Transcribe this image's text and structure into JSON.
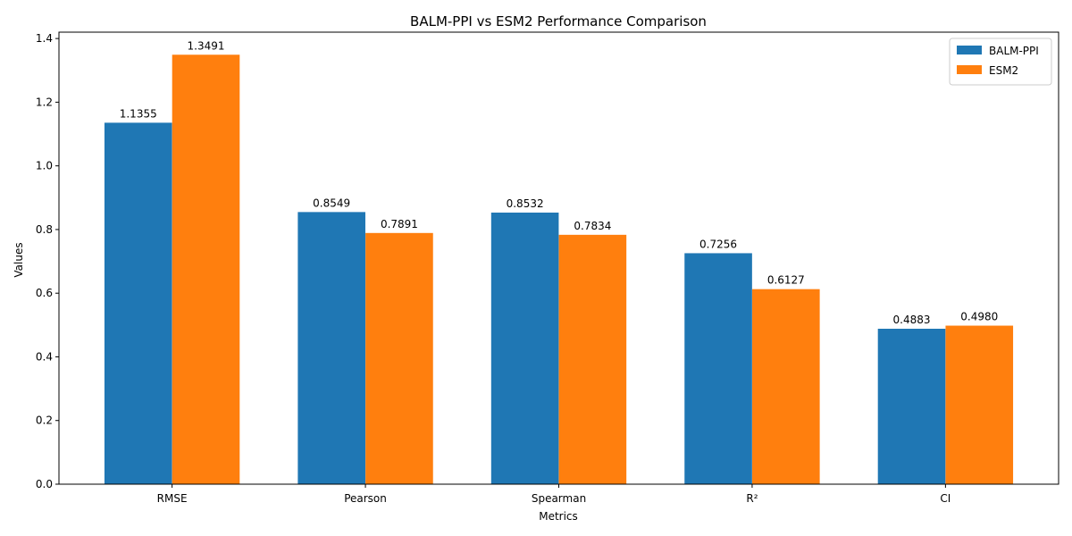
{
  "chart_data": {
    "type": "bar",
    "title": "BALM-PPI vs ESM2 Performance Comparison",
    "xlabel": "Metrics",
    "ylabel": "Values",
    "categories": [
      "RMSE",
      "Pearson",
      "Spearman",
      "R²",
      "CI"
    ],
    "series": [
      {
        "name": "BALM-PPI",
        "color": "#1f77b4",
        "values": [
          1.1355,
          0.8549,
          0.8532,
          0.7256,
          0.4883
        ],
        "labels": [
          "1.1355",
          "0.8549",
          "0.8532",
          "0.7256",
          "0.4883"
        ]
      },
      {
        "name": "ESM2",
        "color": "#ff7f0e",
        "values": [
          1.3491,
          0.7891,
          0.7834,
          0.6127,
          0.498
        ],
        "labels": [
          "1.3491",
          "0.7891",
          "0.7834",
          "0.6127",
          "0.4980"
        ]
      }
    ],
    "ylim": [
      0,
      1.42
    ],
    "yticks": [
      0.0,
      0.2,
      0.4,
      0.6,
      0.8,
      1.0,
      1.2,
      1.4
    ],
    "ytick_labels": [
      "0.0",
      "0.2",
      "0.4",
      "0.6",
      "0.8",
      "1.0",
      "1.2",
      "1.4"
    ],
    "grid": false,
    "legend_position": "top-right"
  }
}
